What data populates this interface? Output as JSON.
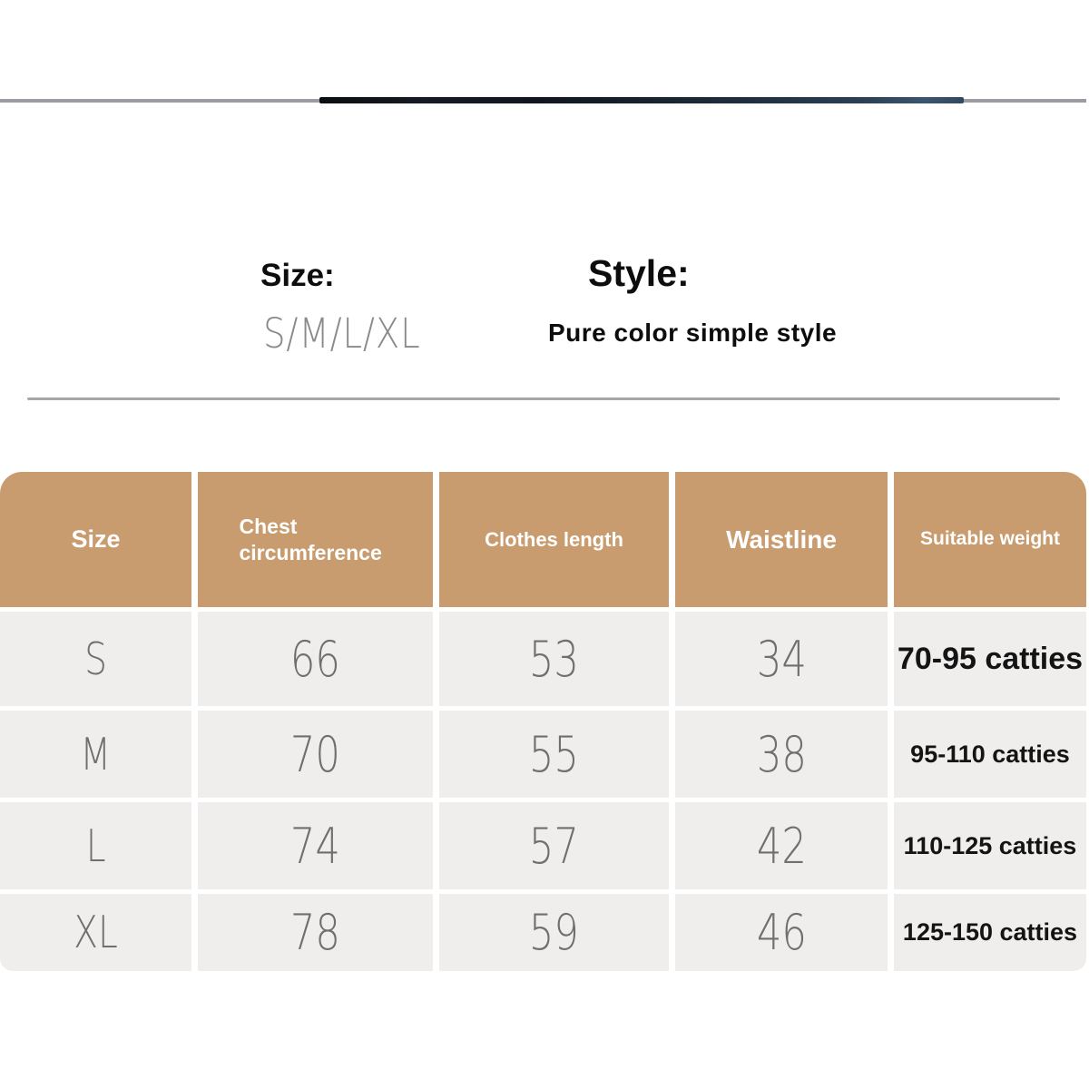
{
  "info": {
    "size_label": "Size:",
    "size_value": "S/M/L/XL",
    "style_label": "Style:",
    "style_value": "Pure color simple style"
  },
  "size_chart": {
    "columns": [
      "Size",
      "Chest circumference",
      "Clothes length",
      "Waistline",
      "Suitable weight"
    ],
    "rows": [
      {
        "size": "S",
        "chest": "66",
        "length": "53",
        "waist": "34",
        "weight": "70-95 catties"
      },
      {
        "size": "M",
        "chest": "70",
        "length": "55",
        "waist": "38",
        "weight": "95-110 catties"
      },
      {
        "size": "L",
        "chest": "74",
        "length": "57",
        "waist": "42",
        "weight": "110-125 catties"
      },
      {
        "size": "XL",
        "chest": "78",
        "length": "59",
        "waist": "46",
        "weight": "125-150 catties"
      }
    ]
  },
  "colors": {
    "header_bg": "#c89c6e",
    "header_text": "#ffffff",
    "row_bg": "#efeeed",
    "light_text": "#6f6f6f",
    "bold_text": "#141414",
    "divider": "#a6a6a6",
    "photo_edge_gray": "#9b9ba3",
    "photo_edge_dark": "#15202c"
  }
}
